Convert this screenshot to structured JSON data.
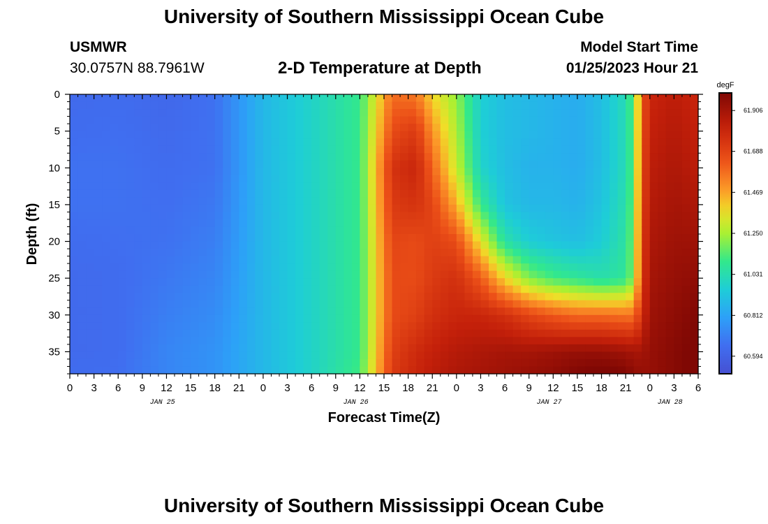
{
  "page": {
    "title": "University of Southern Mississippi Ocean Cube",
    "title_repeat": "University of Southern Mississippi Ocean Cube",
    "station": "USMWR",
    "coords": "30.0757N  88.7961W",
    "subtitle": "2-D Temperature at Depth",
    "model_start_label": "Model Start Time",
    "model_start_value": "01/25/2023 Hour 21"
  },
  "chart_data": {
    "type": "heatmap",
    "title": "2-D Temperature at Depth",
    "xlabel": "Forecast Time(Z)",
    "ylabel": "Depth (ft)",
    "x_unit": "hours from 2023-01-25 00Z",
    "x_range": [
      0,
      78
    ],
    "x_tick_labels": [
      "0",
      "3",
      "6",
      "9",
      "12",
      "15",
      "18",
      "21",
      "0",
      "3",
      "6",
      "9",
      "12",
      "15",
      "18",
      "21",
      "0",
      "3",
      "6",
      "9",
      "12",
      "15",
      "18",
      "21",
      "0",
      "3",
      "6"
    ],
    "date_labels": [
      {
        "label": "JAN 25",
        "at_hour": 11.5
      },
      {
        "label": "JAN 26",
        "at_hour": 35.5
      },
      {
        "label": "JAN 27",
        "at_hour": 59.5
      },
      {
        "label": "JAN 28",
        "at_hour": 74.5
      }
    ],
    "y_range": [
      0,
      38
    ],
    "y_reversed": true,
    "y_ticks": [
      0,
      5,
      10,
      15,
      20,
      25,
      30,
      35
    ],
    "colorbar": {
      "unit": "degF",
      "tick_labels": [
        "61.906",
        "61.688",
        "61.469",
        "61.250",
        "61.031",
        "60.812",
        "60.594"
      ],
      "range": [
        60.5,
        62.0
      ]
    },
    "depth_levels": [
      0,
      5,
      10,
      15,
      20,
      25,
      30,
      35,
      38
    ],
    "time_points": [
      0,
      6,
      12,
      18,
      24,
      30,
      36,
      40,
      43,
      45,
      48,
      51,
      54,
      57,
      60,
      63,
      66,
      69,
      70,
      71,
      72,
      75,
      78
    ],
    "values": [
      [
        60.63,
        60.64,
        60.66,
        60.66,
        60.64,
        60.63,
        60.63,
        60.63,
        60.64
      ],
      [
        60.64,
        60.65,
        60.66,
        60.66,
        60.65,
        60.64,
        60.64,
        60.64,
        60.65
      ],
      [
        60.62,
        60.63,
        60.64,
        60.65,
        60.66,
        60.68,
        60.7,
        60.72,
        60.72
      ],
      [
        60.66,
        60.66,
        60.66,
        60.68,
        60.7,
        60.72,
        60.74,
        60.76,
        60.76
      ],
      [
        60.88,
        60.88,
        60.88,
        60.88,
        60.88,
        60.88,
        60.88,
        60.88,
        60.88
      ],
      [
        60.98,
        60.98,
        60.98,
        60.98,
        60.98,
        60.98,
        60.98,
        60.98,
        60.98
      ],
      [
        61.1,
        61.1,
        61.1,
        61.1,
        61.1,
        61.1,
        61.1,
        61.1,
        61.12
      ],
      [
        61.58,
        61.66,
        61.75,
        61.72,
        61.68,
        61.66,
        61.66,
        61.7,
        61.72
      ],
      [
        61.55,
        61.72,
        61.8,
        61.75,
        61.66,
        61.66,
        61.7,
        61.78,
        61.8
      ],
      [
        61.38,
        61.5,
        61.6,
        61.68,
        61.7,
        61.72,
        61.76,
        61.82,
        61.84
      ],
      [
        61.22,
        61.26,
        61.3,
        61.45,
        61.66,
        61.76,
        61.8,
        61.86,
        61.88
      ],
      [
        60.96,
        60.96,
        60.98,
        61.1,
        61.35,
        61.62,
        61.8,
        61.88,
        61.9
      ],
      [
        60.9,
        60.9,
        60.9,
        60.92,
        61.05,
        61.38,
        61.76,
        61.9,
        61.92
      ],
      [
        60.88,
        60.88,
        60.86,
        60.88,
        60.95,
        61.2,
        61.68,
        61.9,
        61.94
      ],
      [
        60.86,
        60.86,
        60.86,
        60.88,
        60.92,
        61.12,
        61.62,
        61.92,
        61.96
      ],
      [
        60.84,
        60.84,
        60.84,
        60.86,
        60.9,
        61.08,
        61.58,
        61.94,
        62.0
      ],
      [
        60.9,
        60.9,
        60.9,
        60.92,
        60.95,
        61.04,
        61.58,
        61.94,
        62.02
      ],
      [
        61.02,
        61.02,
        61.02,
        61.04,
        61.06,
        61.08,
        61.56,
        61.92,
        62.0
      ],
      [
        61.16,
        61.16,
        61.16,
        61.18,
        61.2,
        61.22,
        61.56,
        61.9,
        61.96
      ],
      [
        61.6,
        61.62,
        61.64,
        61.66,
        61.68,
        61.7,
        61.76,
        61.9,
        61.94
      ],
      [
        61.8,
        61.82,
        61.84,
        61.86,
        61.88,
        61.9,
        61.92,
        61.94,
        61.94
      ],
      [
        61.84,
        61.86,
        61.88,
        61.9,
        61.92,
        61.94,
        61.96,
        61.98,
        61.98
      ],
      [
        61.8,
        61.82,
        61.84,
        61.88,
        61.92,
        61.96,
        62.0,
        62.02,
        62.02
      ]
    ]
  }
}
